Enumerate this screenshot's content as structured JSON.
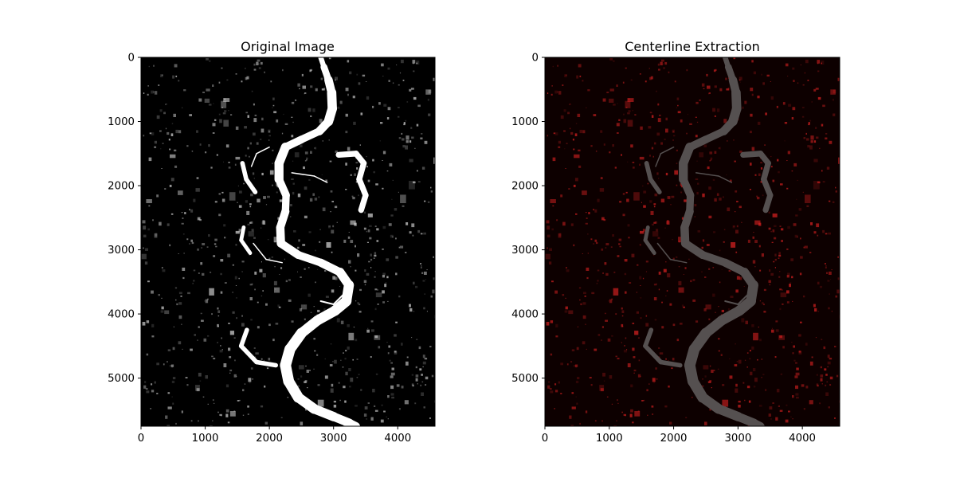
{
  "chart_data": [
    {
      "type": "image",
      "title": "Original Image",
      "colormap": "gray",
      "xlim": [
        0,
        4580
      ],
      "ylim": [
        5750,
        0
      ],
      "xticks": [
        0,
        1000,
        2000,
        3000,
        4000
      ],
      "yticks": [
        0,
        1000,
        2000,
        3000,
        4000,
        5000
      ],
      "xtick_labels": [
        "0",
        "1000",
        "2000",
        "3000",
        "4000"
      ],
      "ytick_labels": [
        "0",
        "1000",
        "2000",
        "3000",
        "4000",
        "5000"
      ],
      "background_color": "#000000",
      "river_color": "#ffffff",
      "speckle_color": "#cfcfcf",
      "grid": false
    },
    {
      "type": "image",
      "title": "Centerline Extraction",
      "colormap": "red overlay",
      "xlim": [
        0,
        4580
      ],
      "ylim": [
        5750,
        0
      ],
      "xticks": [
        0,
        1000,
        2000,
        3000,
        4000
      ],
      "yticks": [
        0,
        1000,
        2000,
        3000,
        4000,
        5000
      ],
      "xtick_labels": [
        "0",
        "1000",
        "2000",
        "3000",
        "4000"
      ],
      "ytick_labels": [
        "0",
        "1000",
        "2000",
        "3000",
        "4000",
        "5000"
      ],
      "background_color": "#0d0000",
      "river_color": "#555050",
      "speckle_color": "#d42020",
      "grid": false
    }
  ]
}
